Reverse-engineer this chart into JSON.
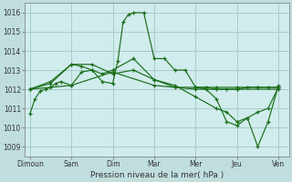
{
  "background_color": "#c0dede",
  "plot_bg_color": "#d0ecec",
  "grid_color": "#a8cccc",
  "line_color": "#1a6e1a",
  "xlabel": "Pression niveau de la mer( hPa )",
  "ylim": [
    1008.5,
    1016.5
  ],
  "yticks": [
    1009,
    1010,
    1011,
    1012,
    1013,
    1014,
    1015,
    1016
  ],
  "xtick_labels": [
    "Dimoun",
    "Sam",
    "Dim",
    "Mar",
    "Mer",
    "Jeu",
    "Ven"
  ],
  "xtick_positions": [
    0,
    8,
    16,
    24,
    32,
    40,
    48
  ],
  "xlim": [
    -1,
    50
  ],
  "series": [
    {
      "x": [
        0,
        1,
        2,
        3,
        4,
        5,
        6,
        8,
        10,
        12,
        14,
        16,
        17,
        18,
        19,
        20,
        22,
        24,
        26,
        28,
        30,
        32,
        34,
        36,
        38,
        40,
        42,
        44,
        46,
        48
      ],
      "y": [
        1010.7,
        1011.5,
        1011.9,
        1012.0,
        1012.1,
        1012.3,
        1012.4,
        1012.2,
        1012.9,
        1013.0,
        1012.4,
        1012.3,
        1013.5,
        1015.5,
        1015.9,
        1016.0,
        1016.0,
        1013.6,
        1013.6,
        1013.0,
        1013.0,
        1012.1,
        1012.1,
        1012.0,
        1012.0,
        1012.0,
        1012.1,
        1012.1,
        1012.1,
        1012.1
      ]
    },
    {
      "x": [
        0,
        4,
        8,
        10,
        12,
        14,
        16,
        20,
        24,
        28,
        32,
        36,
        40,
        44,
        48
      ],
      "y": [
        1012.0,
        1012.4,
        1013.3,
        1013.2,
        1013.0,
        1012.8,
        1013.0,
        1013.6,
        1012.5,
        1012.1,
        1012.1,
        1012.1,
        1012.1,
        1012.1,
        1012.1
      ]
    },
    {
      "x": [
        0,
        8,
        16,
        24,
        32,
        40,
        48
      ],
      "y": [
        1012.0,
        1012.2,
        1012.9,
        1012.2,
        1012.0,
        1012.0,
        1012.0
      ]
    },
    {
      "x": [
        0,
        4,
        8,
        12,
        16,
        20,
        24,
        28,
        32,
        36,
        38,
        40,
        42,
        44,
        46,
        48
      ],
      "y": [
        1012.0,
        1012.3,
        1013.3,
        1013.3,
        1012.8,
        1013.0,
        1012.5,
        1012.2,
        1011.6,
        1011.0,
        1010.8,
        1010.3,
        1010.5,
        1010.8,
        1011.0,
        1012.1
      ]
    },
    {
      "x": [
        32,
        34,
        36,
        38,
        40,
        42,
        44,
        46,
        48
      ],
      "y": [
        1012.1,
        1012.0,
        1011.5,
        1010.3,
        1010.1,
        1010.5,
        1009.0,
        1010.3,
        1012.2
      ]
    }
  ]
}
